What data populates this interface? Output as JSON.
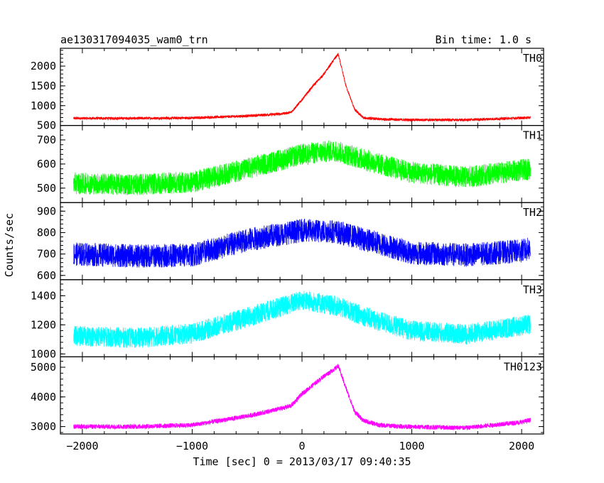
{
  "header": {
    "left_title": "ae130317094035_wam0_trn",
    "right_title": "Bin time: 1.0 s"
  },
  "chart_data": {
    "type": "line",
    "xlabel": "Time [sec] 0 = 2013/03/17 09:40:35",
    "ylabel": "Counts/sec",
    "xlim": [
      -2200,
      2200
    ],
    "x_ticks": [
      -2000,
      -1000,
      0,
      1000,
      2000
    ],
    "x_tick_labels": [
      "−2000",
      "−1000",
      "0",
      "1000",
      "2000"
    ],
    "x_range": [
      -2080,
      2080
    ],
    "bin_time": 1.0,
    "grid": false,
    "panels": [
      {
        "name": "TH0",
        "color": "#ff0000",
        "ylim": [
          500,
          2450
        ],
        "y_ticks": [
          500,
          1000,
          1500,
          2000
        ],
        "noise": 35,
        "shape_points": [
          [
            -2080,
            680
          ],
          [
            -1500,
            680
          ],
          [
            -1000,
            690
          ],
          [
            -500,
            740
          ],
          [
            -200,
            790
          ],
          [
            -100,
            830
          ],
          [
            0,
            1150
          ],
          [
            100,
            1500
          ],
          [
            200,
            1800
          ],
          [
            300,
            2200
          ],
          [
            330,
            2300
          ],
          [
            400,
            1500
          ],
          [
            480,
            900
          ],
          [
            560,
            690
          ],
          [
            700,
            660
          ],
          [
            1000,
            640
          ],
          [
            1500,
            640
          ],
          [
            2000,
            690
          ],
          [
            2080,
            700
          ]
        ]
      },
      {
        "name": "TH1",
        "color": "#00ff00",
        "ylim": [
          440,
          760
        ],
        "y_ticks": [
          500,
          600,
          700
        ],
        "noise": 45,
        "shape_points": [
          [
            -2080,
            520
          ],
          [
            -1500,
            515
          ],
          [
            -1000,
            525
          ],
          [
            -500,
            580
          ],
          [
            0,
            640
          ],
          [
            300,
            655
          ],
          [
            700,
            600
          ],
          [
            1000,
            565
          ],
          [
            1500,
            545
          ],
          [
            2000,
            575
          ],
          [
            2080,
            580
          ]
        ]
      },
      {
        "name": "TH2",
        "color": "#0000ff",
        "ylim": [
          580,
          940
        ],
        "y_ticks": [
          600,
          700,
          800,
          900
        ],
        "noise": 55,
        "shape_points": [
          [
            -2080,
            700
          ],
          [
            -1500,
            690
          ],
          [
            -1000,
            695
          ],
          [
            -500,
            765
          ],
          [
            0,
            810
          ],
          [
            300,
            805
          ],
          [
            700,
            750
          ],
          [
            1000,
            705
          ],
          [
            1500,
            695
          ],
          [
            2000,
            715
          ],
          [
            2080,
            725
          ]
        ]
      },
      {
        "name": "TH3",
        "color": "#00ffff",
        "ylim": [
          980,
          1510
        ],
        "y_ticks": [
          1000,
          1200,
          1400
        ],
        "noise": 70,
        "shape_points": [
          [
            -2080,
            1125
          ],
          [
            -1500,
            1110
          ],
          [
            -1000,
            1140
          ],
          [
            -500,
            1250
          ],
          [
            0,
            1370
          ],
          [
            300,
            1330
          ],
          [
            700,
            1225
          ],
          [
            1000,
            1160
          ],
          [
            1500,
            1135
          ],
          [
            2000,
            1195
          ],
          [
            2080,
            1205
          ]
        ]
      },
      {
        "name": "TH0123",
        "color": "#ff00ff",
        "ylim": [
          2750,
          5350
        ],
        "y_ticks": [
          3000,
          4000,
          5000
        ],
        "noise": 80,
        "shape_points": [
          [
            -2080,
            3000
          ],
          [
            -1500,
            3000
          ],
          [
            -1000,
            3050
          ],
          [
            -500,
            3350
          ],
          [
            -200,
            3600
          ],
          [
            -100,
            3700
          ],
          [
            0,
            4100
          ],
          [
            200,
            4700
          ],
          [
            300,
            4950
          ],
          [
            330,
            5050
          ],
          [
            400,
            4300
          ],
          [
            480,
            3500
          ],
          [
            560,
            3200
          ],
          [
            700,
            3050
          ],
          [
            1000,
            2990
          ],
          [
            1500,
            2960
          ],
          [
            2000,
            3150
          ],
          [
            2080,
            3220
          ]
        ]
      }
    ]
  }
}
